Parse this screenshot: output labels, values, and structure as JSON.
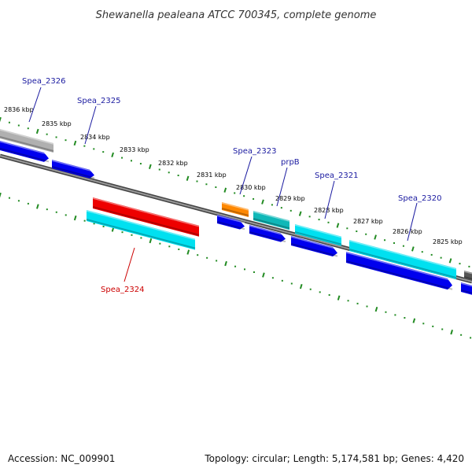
{
  "title": "Shewanella pealeana ATCC 700345, complete genome",
  "footer": {
    "accession": "Accession: NC_009901",
    "topology": "Topology: circular; Length: 5,174,581 bp; Genes: 4,420"
  },
  "colors": {
    "backbone": "#777777",
    "tick": "#228B22",
    "label_blue": "#1a1aa0",
    "label_red": "#cc0000",
    "cds_forward": "#00e0f0",
    "cds_reverse": "#0000ee",
    "highlight": "#ee0000",
    "orange": "#ff8800",
    "teal": "#10b8b8",
    "grey": "#b0b0b0"
  },
  "kbp_labels": [
    "2836 kbp",
    "2835 kbp",
    "2834 kbp",
    "2833 kbp",
    "2832 kbp",
    "2831 kbp",
    "2830 kbp",
    "2829 kbp",
    "2828 kbp",
    "2827 kbp",
    "2826 kbp",
    "2825 kbp"
  ],
  "genes": [
    {
      "name": "Spea_2326",
      "color_key": "label_blue"
    },
    {
      "name": "Spea_2325",
      "color_key": "label_blue"
    },
    {
      "name": "Spea_2323",
      "color_key": "label_blue"
    },
    {
      "name": "prpB",
      "color_key": "label_blue"
    },
    {
      "name": "Spea_2321",
      "color_key": "label_blue"
    },
    {
      "name": "Spea_2320",
      "color_key": "label_blue"
    },
    {
      "name": "Spea_2324",
      "color_key": "label_red"
    }
  ]
}
